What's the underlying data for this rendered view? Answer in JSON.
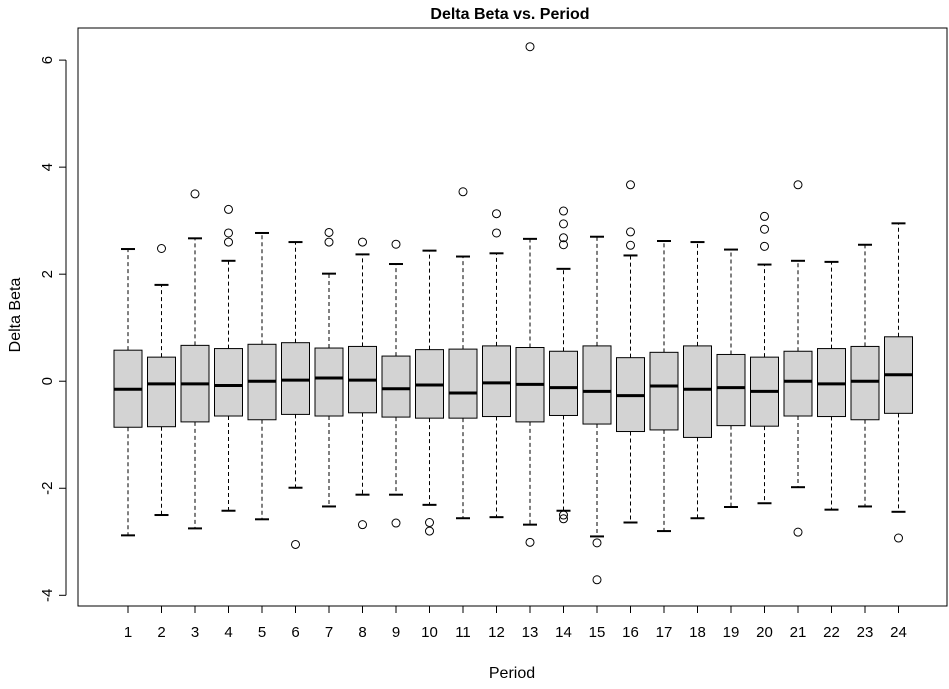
{
  "chart_data": {
    "type": "boxplot",
    "title": "Delta Beta vs. Period",
    "xlabel": "Period",
    "ylabel": "Delta Beta",
    "ylim": [
      -4.2,
      6.6
    ],
    "yticks": [
      -4,
      -2,
      0,
      2,
      4,
      6
    ],
    "grid": false,
    "colors": {
      "box_fill": "#d3d3d3",
      "stroke": "#000000"
    },
    "categories": [
      "1",
      "2",
      "3",
      "4",
      "5",
      "6",
      "7",
      "8",
      "9",
      "10",
      "11",
      "12",
      "13",
      "14",
      "15",
      "16",
      "17",
      "18",
      "19",
      "20",
      "21",
      "22",
      "23",
      "24"
    ],
    "boxes": [
      {
        "period": "1",
        "q1": -0.86,
        "median": -0.15,
        "q3": 0.58,
        "whisker_low": -2.88,
        "whisker_high": 2.47,
        "outliers": []
      },
      {
        "period": "2",
        "q1": -0.85,
        "median": -0.05,
        "q3": 0.45,
        "whisker_low": -2.5,
        "whisker_high": 1.8,
        "outliers": [
          2.48
        ]
      },
      {
        "period": "3",
        "q1": -0.76,
        "median": -0.05,
        "q3": 0.67,
        "whisker_low": -2.75,
        "whisker_high": 2.67,
        "outliers": [
          3.5
        ]
      },
      {
        "period": "4",
        "q1": -0.65,
        "median": -0.08,
        "q3": 0.61,
        "whisker_low": -2.42,
        "whisker_high": 2.25,
        "outliers": [
          2.6,
          2.77,
          3.21
        ]
      },
      {
        "period": "5",
        "q1": -0.72,
        "median": 0.0,
        "q3": 0.69,
        "whisker_low": -2.58,
        "whisker_high": 2.77,
        "outliers": []
      },
      {
        "period": "6",
        "q1": -0.62,
        "median": 0.02,
        "q3": 0.72,
        "whisker_low": -1.99,
        "whisker_high": 2.6,
        "outliers": [
          -3.05
        ]
      },
      {
        "period": "7",
        "q1": -0.65,
        "median": 0.06,
        "q3": 0.62,
        "whisker_low": -2.34,
        "whisker_high": 2.01,
        "outliers": [
          2.6,
          2.78
        ]
      },
      {
        "period": "8",
        "q1": -0.59,
        "median": 0.02,
        "q3": 0.65,
        "whisker_low": -2.12,
        "whisker_high": 2.37,
        "outliers": [
          2.6,
          -2.68
        ]
      },
      {
        "period": "9",
        "q1": -0.67,
        "median": -0.14,
        "q3": 0.47,
        "whisker_low": -2.12,
        "whisker_high": 2.19,
        "outliers": [
          2.56,
          -2.65
        ]
      },
      {
        "period": "10",
        "q1": -0.69,
        "median": -0.07,
        "q3": 0.59,
        "whisker_low": -2.31,
        "whisker_high": 2.44,
        "outliers": [
          -2.64,
          -2.8
        ]
      },
      {
        "period": "11",
        "q1": -0.69,
        "median": -0.22,
        "q3": 0.6,
        "whisker_low": -2.56,
        "whisker_high": 2.33,
        "outliers": [
          3.54
        ]
      },
      {
        "period": "12",
        "q1": -0.66,
        "median": -0.03,
        "q3": 0.66,
        "whisker_low": -2.54,
        "whisker_high": 2.39,
        "outliers": [
          2.77,
          3.13
        ]
      },
      {
        "period": "13",
        "q1": -0.76,
        "median": -0.06,
        "q3": 0.63,
        "whisker_low": -2.68,
        "whisker_high": 2.66,
        "outliers": [
          6.25,
          -3.01
        ]
      },
      {
        "period": "14",
        "q1": -0.64,
        "median": -0.12,
        "q3": 0.56,
        "whisker_low": -2.42,
        "whisker_high": 2.1,
        "outliers": [
          2.55,
          2.68,
          2.94,
          3.18,
          -2.5,
          -2.57
        ]
      },
      {
        "period": "15",
        "q1": -0.8,
        "median": -0.19,
        "q3": 0.66,
        "whisker_low": -2.9,
        "whisker_high": 2.7,
        "outliers": [
          -3.02,
          -3.71
        ]
      },
      {
        "period": "16",
        "q1": -0.94,
        "median": -0.27,
        "q3": 0.44,
        "whisker_low": -2.64,
        "whisker_high": 2.35,
        "outliers": [
          2.54,
          2.79,
          3.67
        ]
      },
      {
        "period": "17",
        "q1": -0.91,
        "median": -0.09,
        "q3": 0.54,
        "whisker_low": -2.8,
        "whisker_high": 2.62,
        "outliers": []
      },
      {
        "period": "18",
        "q1": -1.05,
        "median": -0.15,
        "q3": 0.66,
        "whisker_low": -2.56,
        "whisker_high": 2.6,
        "outliers": []
      },
      {
        "period": "19",
        "q1": -0.83,
        "median": -0.12,
        "q3": 0.5,
        "whisker_low": -2.35,
        "whisker_high": 2.46,
        "outliers": []
      },
      {
        "period": "20",
        "q1": -0.84,
        "median": -0.19,
        "q3": 0.45,
        "whisker_low": -2.28,
        "whisker_high": 2.18,
        "outliers": [
          2.52,
          2.84,
          3.08
        ]
      },
      {
        "period": "21",
        "q1": -0.65,
        "median": 0.0,
        "q3": 0.56,
        "whisker_low": -1.98,
        "whisker_high": 2.25,
        "outliers": [
          3.67,
          -2.82
        ]
      },
      {
        "period": "22",
        "q1": -0.66,
        "median": -0.05,
        "q3": 0.61,
        "whisker_low": -2.4,
        "whisker_high": 2.23,
        "outliers": []
      },
      {
        "period": "23",
        "q1": -0.72,
        "median": 0.0,
        "q3": 0.65,
        "whisker_low": -2.34,
        "whisker_high": 2.55,
        "outliers": []
      },
      {
        "period": "24",
        "q1": -0.6,
        "median": 0.12,
        "q3": 0.83,
        "whisker_low": -2.44,
        "whisker_high": 2.95,
        "outliers": [
          -2.93
        ]
      }
    ]
  }
}
